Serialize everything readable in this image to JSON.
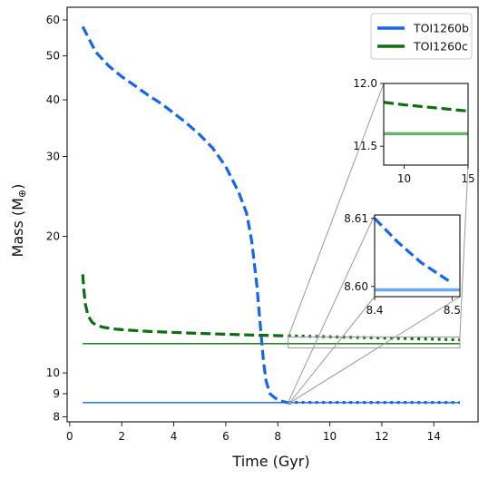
{
  "chart_data": {
    "type": "line",
    "xlabel": "Time (Gyr)",
    "ylabel": "Mass (M",
    "ylabel_symbol": "⊕",
    "ylabel_close": ")",
    "xlim": [
      -0.1,
      15.7
    ],
    "ylim": [
      7.8,
      64
    ],
    "yscale": "log",
    "xticks": [
      "0",
      "2",
      "4",
      "6",
      "8",
      "10",
      "12",
      "14"
    ],
    "xtick_values": [
      0,
      2,
      4,
      6,
      8,
      10,
      12,
      14
    ],
    "yticks": [
      "8",
      "9",
      "10",
      "20",
      "30",
      "40",
      "50",
      "60"
    ],
    "ytick_values": [
      8,
      9,
      10,
      20,
      30,
      40,
      50,
      60
    ],
    "grid": false,
    "legend_placement": "top-right",
    "colors": {
      "b": "#1565ee",
      "c": "#0d6e0d",
      "b_light": "#6aaaf5",
      "c_light": "#6ab36a",
      "connector": "#999999"
    },
    "series": [
      {
        "name": "TOI1260b",
        "color": "#1565ee",
        "x": [
          0.5,
          1.0,
          1.5,
          2.0,
          2.5,
          3.0,
          3.5,
          4.0,
          4.5,
          5.0,
          5.5,
          6.0,
          6.5,
          6.8,
          7.0,
          7.2,
          7.35,
          7.45,
          7.55,
          7.7,
          7.9,
          8.1,
          8.3,
          8.4
        ],
        "y": [
          58,
          51,
          47.5,
          45,
          43,
          41,
          39.3,
          37.4,
          35.5,
          33.5,
          31.3,
          28.5,
          25,
          22.5,
          19.5,
          15.5,
          12.3,
          10.6,
          9.6,
          9.0,
          8.8,
          8.68,
          8.62,
          8.61
        ]
      },
      {
        "name": "TOI1260c",
        "color": "#0d6e0d",
        "x": [
          0.5,
          0.55,
          0.6,
          0.7,
          0.85,
          1.0,
          1.3,
          1.7,
          2.2,
          3.0,
          4.0,
          5.0,
          6.0,
          7.0,
          8.0,
          8.4
        ],
        "y": [
          16.5,
          15.1,
          14.2,
          13.4,
          12.95,
          12.75,
          12.6,
          12.5,
          12.43,
          12.35,
          12.28,
          12.22,
          12.17,
          12.12,
          12.08,
          12.07
        ]
      }
    ],
    "dotted_extensions": [
      {
        "series": "TOI1260b",
        "x": [
          8.4,
          15.0
        ],
        "y": [
          8.61,
          8.605
        ]
      },
      {
        "series": "TOI1260c",
        "x": [
          8.4,
          15.0
        ],
        "y": [
          12.07,
          11.83
        ]
      }
    ],
    "reference_lines": [
      {
        "series": "TOI1260b",
        "y": 8.6
      },
      {
        "series": "TOI1260c",
        "y": 11.6
      }
    ],
    "zoom_boxes": [
      {
        "x": [
          8.4,
          15.0
        ],
        "y": [
          11.35,
          12.0
        ]
      },
      {
        "x": [
          8.4,
          8.5
        ],
        "y": [
          8.595,
          8.62
        ]
      }
    ],
    "insets": [
      {
        "xlim": [
          8.4,
          15.0
        ],
        "ylim": [
          11.35,
          12.0
        ],
        "xticks": [
          "10",
          "15"
        ],
        "xtick_values": [
          10,
          15
        ],
        "yticks": [
          "11.5",
          "12.0"
        ],
        "ytick_values": [
          11.5,
          12.0
        ],
        "dashed": {
          "x": [
            8.4,
            10,
            12,
            15
          ],
          "y": [
            11.85,
            11.83,
            11.81,
            11.78
          ]
        },
        "solid_y": 11.6
      },
      {
        "xlim": [
          8.4,
          8.51
        ],
        "ylim": [
          8.5985,
          8.6105
        ],
        "xticks": [
          "8.4",
          "8.5"
        ],
        "xtick_values": [
          8.4,
          8.5
        ],
        "yticks": [
          "8.60",
          "8.61"
        ],
        "ytick_values": [
          8.6,
          8.61
        ],
        "dashed": {
          "x": [
            8.4,
            8.43,
            8.46,
            8.5
          ],
          "y": [
            8.61,
            8.6065,
            8.6035,
            8.6005
          ]
        },
        "solid_y": 8.5995
      }
    ]
  }
}
